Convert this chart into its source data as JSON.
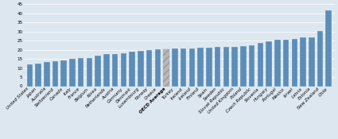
{
  "categories": [
    "United States",
    "Japan",
    "Australia",
    "Switzerland",
    "Canada",
    "Italy",
    "France",
    "Belgium",
    "Korea",
    "Netherlands",
    "Austria",
    "Germany",
    "Denmark",
    "Luxembourg",
    "Norway",
    "Greece",
    "OECD Average",
    "Turkey",
    "Ireland",
    "Iceland",
    "Finland",
    "Spain",
    "Sweden",
    "Slovak Republic",
    "United Kingdom",
    "Poland",
    "Czech Republic",
    "Slovenia",
    "Hungary",
    "Portugal",
    "Mexico",
    "Israel",
    "Latvia",
    "Estonia",
    "New Zealand",
    "Chile"
  ],
  "values": [
    12.2,
    12.4,
    13.1,
    13.6,
    14.0,
    15.2,
    15.5,
    15.6,
    16.6,
    17.5,
    17.6,
    18.0,
    18.9,
    19.3,
    19.8,
    20.2,
    20.4,
    20.7,
    20.8,
    20.9,
    21.1,
    21.2,
    21.4,
    21.5,
    21.6,
    22.1,
    22.3,
    23.7,
    24.6,
    25.3,
    25.6,
    25.8,
    26.6,
    26.7,
    30.1,
    41.8
  ],
  "bar_color": "#5b8db8",
  "oecd_color": "#b8b8b8",
  "oecd_hatch": "////",
  "plot_bg": "#dde7f0",
  "ylim": [
    0,
    45
  ],
  "yticks": [
    0,
    5,
    10,
    15,
    20,
    25,
    30,
    35,
    40,
    45
  ],
  "grid_color": "#ffffff",
  "tick_label_fontsize": 4.0,
  "ylabel_fontsize": 4.0,
  "oecd_index": 16,
  "bar_width": 0.7
}
